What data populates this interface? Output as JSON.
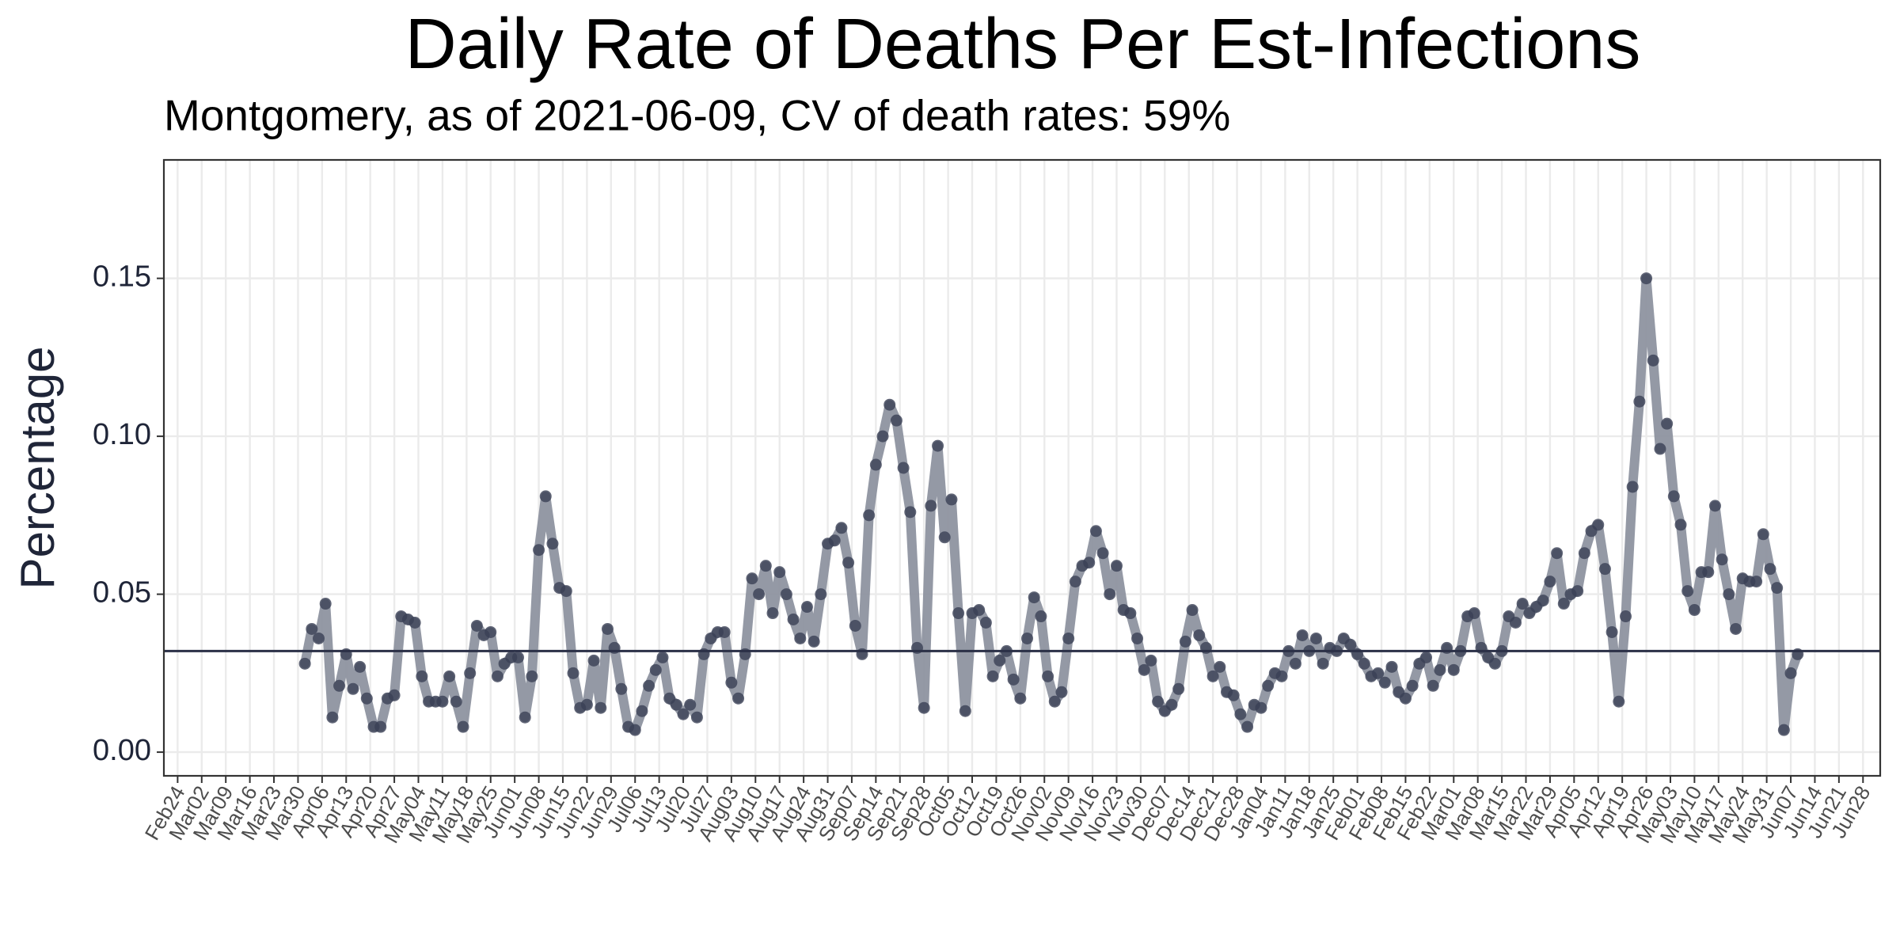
{
  "chart_data": {
    "type": "line",
    "title": "Daily Rate of Deaths Per Est-Infections",
    "subtitle": "Montgomery, as of 2021-06-09, CV of death rates: 59%",
    "y_label": "Percentage",
    "line_color": "#8e93a0",
    "point_color": "#3a4055",
    "hline": 0.032,
    "hline_color": "#2b3047",
    "grid": true,
    "xlim": [
      "Feb20",
      "Jul03"
    ],
    "xticks": [
      "Feb24",
      "Mar02",
      "Mar09",
      "Mar16",
      "Mar23",
      "Mar30",
      "Apr06",
      "Apr13",
      "Apr20",
      "Apr27",
      "May04",
      "May11",
      "May18",
      "May25",
      "Jun01",
      "Jun08",
      "Jun15",
      "Jun22",
      "Jun29",
      "Jul06",
      "Jul13",
      "Jul20",
      "Jul27",
      "Aug03",
      "Aug10",
      "Aug17",
      "Aug24",
      "Aug31",
      "Sep07",
      "Sep14",
      "Sep21",
      "Sep28",
      "Oct05",
      "Oct12",
      "Oct19",
      "Oct26",
      "Nov02",
      "Nov09",
      "Nov16",
      "Nov23",
      "Nov30",
      "Dec07",
      "Dec14",
      "Dec21",
      "Dec28",
      "Jan04",
      "Jan11",
      "Jan18",
      "Jan25",
      "Feb01",
      "Feb08",
      "Feb15",
      "Feb22",
      "Mar01",
      "Mar08",
      "Mar15",
      "Mar22",
      "Mar29",
      "Apr05",
      "Apr12",
      "Apr19",
      "Apr26",
      "May03",
      "May10",
      "May17",
      "May24",
      "May31",
      "Jun07",
      "Jun14",
      "Jun21",
      "Jun28"
    ],
    "ylim": [
      -0.0075,
      0.1875
    ],
    "yticks": [
      {
        "value": 0,
        "label": "0.00"
      },
      0.05,
      {
        "value": 0.1,
        "label": "0.10"
      },
      0.15
    ],
    "x": [
      "Apr01",
      "Apr03",
      "Apr05",
      "Apr07",
      "Apr09",
      "Apr11",
      "Apr13",
      "Apr15",
      "Apr17",
      "Apr19",
      "Apr21",
      "Apr23",
      "Apr25",
      "Apr27",
      "Apr29",
      "May01",
      "May03",
      "May05",
      "May07",
      "May09",
      "May11",
      "May13",
      "May15",
      "May17",
      "May19",
      "May21",
      "May23",
      "May25",
      "May27",
      "May29",
      "May31",
      "Jun02",
      "Jun04",
      "Jun06",
      "Jun08",
      "Jun10",
      "Jun12",
      "Jun14",
      "Jun16",
      "Jun18",
      "Jun20",
      "Jun22",
      "Jun24",
      "Jun26",
      "Jun28",
      "Jun30",
      "Jul02",
      "Jul04",
      "Jul06",
      "Jul08",
      "Jul10",
      "Jul12",
      "Jul14",
      "Jul16",
      "Jul18",
      "Jul20",
      "Jul22",
      "Jul24",
      "Jul26",
      "Jul28",
      "Jul30",
      "Aug01",
      "Aug03",
      "Aug05",
      "Aug07",
      "Aug09",
      "Aug11",
      "Aug13",
      "Aug15",
      "Aug17",
      "Aug19",
      "Aug21",
      "Aug23",
      "Aug25",
      "Aug27",
      "Aug29",
      "Aug31",
      "Sep02",
      "Sep04",
      "Sep06",
      "Sep08",
      "Sep10",
      "Sep12",
      "Sep14",
      "Sep16",
      "Sep18",
      "Sep20",
      "Sep22",
      "Sep24",
      "Sep26",
      "Sep28",
      "Sep30",
      "Oct02",
      "Oct04",
      "Oct06",
      "Oct08",
      "Oct10",
      "Oct12",
      "Oct14",
      "Oct16",
      "Oct18",
      "Oct20",
      "Oct22",
      "Oct24",
      "Oct26",
      "Oct28",
      "Oct30",
      "Nov01",
      "Nov03",
      "Nov05",
      "Nov07",
      "Nov09",
      "Nov11",
      "Nov13",
      "Nov15",
      "Nov17",
      "Nov19",
      "Nov21",
      "Nov23",
      "Nov25",
      "Nov27",
      "Nov29",
      "Dec01",
      "Dec03",
      "Dec05",
      "Dec07",
      "Dec09",
      "Dec11",
      "Dec13",
      "Dec15",
      "Dec17",
      "Dec19",
      "Dec21",
      "Dec23",
      "Dec25",
      "Dec27",
      "Dec29",
      "Dec31",
      "Jan02",
      "Jan04",
      "Jan06",
      "Jan08",
      "Jan10",
      "Jan12",
      "Jan14",
      "Jan16",
      "Jan18",
      "Jan20",
      "Jan22",
      "Jan24",
      "Jan26",
      "Jan28",
      "Jan30",
      "Feb01",
      "Feb03",
      "Feb05",
      "Feb07",
      "Feb09",
      "Feb11",
      "Feb13",
      "Feb15",
      "Feb17",
      "Feb19",
      "Feb21",
      "Feb23",
      "Feb25",
      "Feb27",
      "Mar01",
      "Mar03",
      "Mar05",
      "Mar07",
      "Mar09",
      "Mar11",
      "Mar13",
      "Mar15",
      "Mar17",
      "Mar19",
      "Mar21",
      "Mar23",
      "Mar25",
      "Mar27",
      "Mar29",
      "Mar31",
      "Apr02",
      "Apr04",
      "Apr06",
      "Apr08",
      "Apr10",
      "Apr12",
      "Apr14",
      "Apr16",
      "Apr18",
      "Apr20",
      "Apr22",
      "Apr24",
      "Apr26",
      "Apr28",
      "Apr30",
      "May02",
      "May04",
      "May06",
      "May08",
      "May10",
      "May12",
      "May14",
      "May16",
      "May18",
      "May20",
      "May22",
      "May24",
      "May26",
      "May28",
      "May30",
      "Jun01",
      "Jun03",
      "Jun05",
      "Jun07",
      "Jun09"
    ],
    "values": [
      0.028,
      0.039,
      0.036,
      0.047,
      0.011,
      0.021,
      0.031,
      0.02,
      0.027,
      0.017,
      0.008,
      0.008,
      0.017,
      0.018,
      0.043,
      0.042,
      0.041,
      0.024,
      0.016,
      0.016,
      0.016,
      0.024,
      0.016,
      0.008,
      0.025,
      0.04,
      0.037,
      0.038,
      0.024,
      0.028,
      0.03,
      0.03,
      0.011,
      0.024,
      0.064,
      0.081,
      0.066,
      0.052,
      0.051,
      0.025,
      0.014,
      0.015,
      0.029,
      0.014,
      0.039,
      0.033,
      0.02,
      0.008,
      0.007,
      0.013,
      0.021,
      0.026,
      0.03,
      0.017,
      0.015,
      0.012,
      0.015,
      0.011,
      0.031,
      0.036,
      0.038,
      0.038,
      0.022,
      0.017,
      0.031,
      0.055,
      0.05,
      0.059,
      0.044,
      0.057,
      0.05,
      0.042,
      0.036,
      0.046,
      0.035,
      0.05,
      0.066,
      0.067,
      0.071,
      0.06,
      0.04,
      0.031,
      0.075,
      0.091,
      0.1,
      0.11,
      0.105,
      0.09,
      0.076,
      0.033,
      0.014,
      0.078,
      0.097,
      0.068,
      0.08,
      0.044,
      0.013,
      0.044,
      0.045,
      0.041,
      0.024,
      0.029,
      0.032,
      0.023,
      0.017,
      0.036,
      0.049,
      0.043,
      0.024,
      0.016,
      0.019,
      0.036,
      0.054,
      0.059,
      0.06,
      0.07,
      0.063,
      0.05,
      0.059,
      0.045,
      0.044,
      0.036,
      0.026,
      0.029,
      0.016,
      0.013,
      0.015,
      0.02,
      0.035,
      0.045,
      0.037,
      0.033,
      0.024,
      0.027,
      0.019,
      0.018,
      0.012,
      0.008,
      0.015,
      0.014,
      0.021,
      0.025,
      0.024,
      0.032,
      0.028,
      0.037,
      0.032,
      0.036,
      0.028,
      0.033,
      0.032,
      0.036,
      0.034,
      0.031,
      0.028,
      0.024,
      0.025,
      0.022,
      0.027,
      0.019,
      0.017,
      0.021,
      0.028,
      0.03,
      0.021,
      0.026,
      0.033,
      0.026,
      0.032,
      0.043,
      0.044,
      0.033,
      0.03,
      0.028,
      0.032,
      0.043,
      0.041,
      0.047,
      0.044,
      0.046,
      0.048,
      0.054,
      0.063,
      0.047,
      0.05,
      0.051,
      0.063,
      0.07,
      0.072,
      0.058,
      0.038,
      0.016,
      0.043,
      0.084,
      0.111,
      0.15,
      0.124,
      0.096,
      0.104,
      0.081,
      0.072,
      0.051,
      0.045,
      0.057,
      0.057,
      0.078,
      0.061,
      0.05,
      0.039,
      0.055,
      0.054,
      0.054,
      0.069,
      0.058,
      0.052,
      0.007,
      0.025,
      0.031
    ]
  }
}
